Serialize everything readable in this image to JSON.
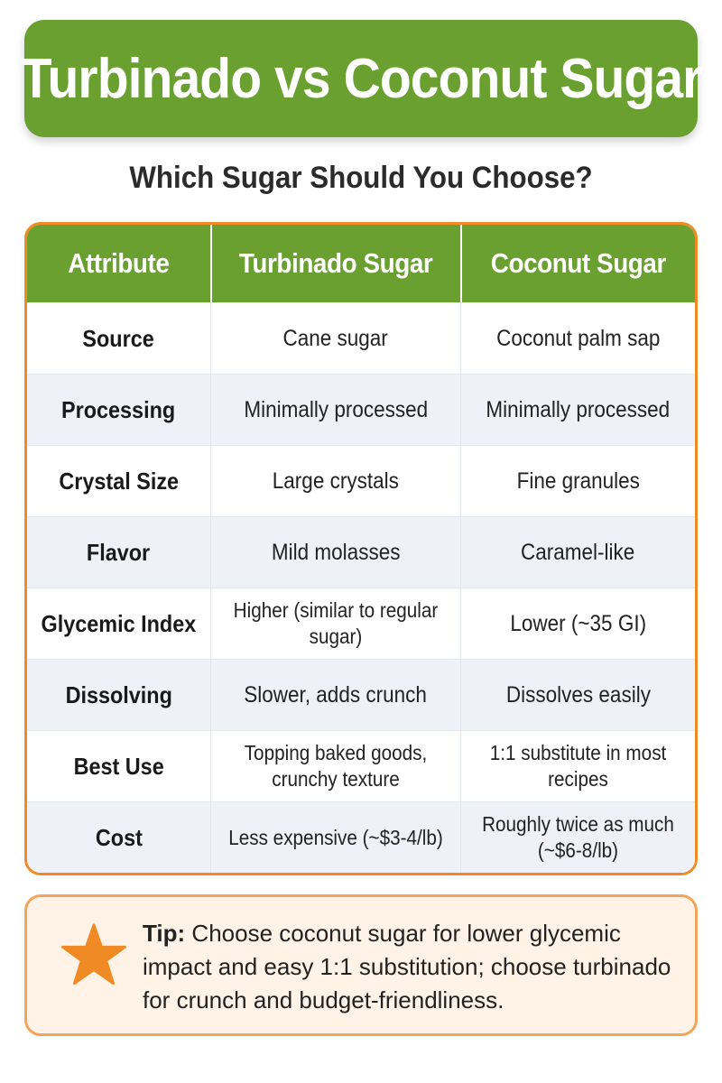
{
  "title": "Turbinado vs Coconut Sugar",
  "subtitle": "Which Sugar Should You Choose?",
  "table": {
    "headers": [
      "Attribute",
      "Turbinado Sugar",
      "Coconut Sugar"
    ],
    "rows": [
      {
        "attribute": "Source",
        "turbinado": "Cane sugar",
        "coconut": "Coconut palm sap"
      },
      {
        "attribute": "Processing",
        "turbinado": "Minimally processed",
        "coconut": "Minimally processed"
      },
      {
        "attribute": "Crystal Size",
        "turbinado": "Large crystals",
        "coconut": "Fine granules"
      },
      {
        "attribute": "Flavor",
        "turbinado": "Mild molasses",
        "coconut": "Caramel-like"
      },
      {
        "attribute": "Glycemic Index",
        "turbinado": "Higher (similar to regular sugar)",
        "coconut": "Lower (~35 GI)"
      },
      {
        "attribute": "Dissolving",
        "turbinado": "Slower, adds crunch",
        "coconut": "Dissolves easily"
      },
      {
        "attribute": "Best Use",
        "turbinado": "Topping baked goods, crunchy texture",
        "coconut": "1:1 substitute in most recipes"
      },
      {
        "attribute": "Cost",
        "turbinado": "Less expensive (~$3-4/lb)",
        "coconut": "Roughly twice as much (~$6-8/lb)"
      }
    ]
  },
  "tip": {
    "icon": "star-icon",
    "label": "Tip:",
    "text": "Choose coconut sugar for lower glycemic impact and easy 1:1 substitution; choose turbinado for crunch and budget-friendliness."
  },
  "colors": {
    "green": "#6aa030",
    "orange": "#f08a24",
    "tip_bg": "#fff2e6",
    "row_alt": "#eef2f8"
  }
}
